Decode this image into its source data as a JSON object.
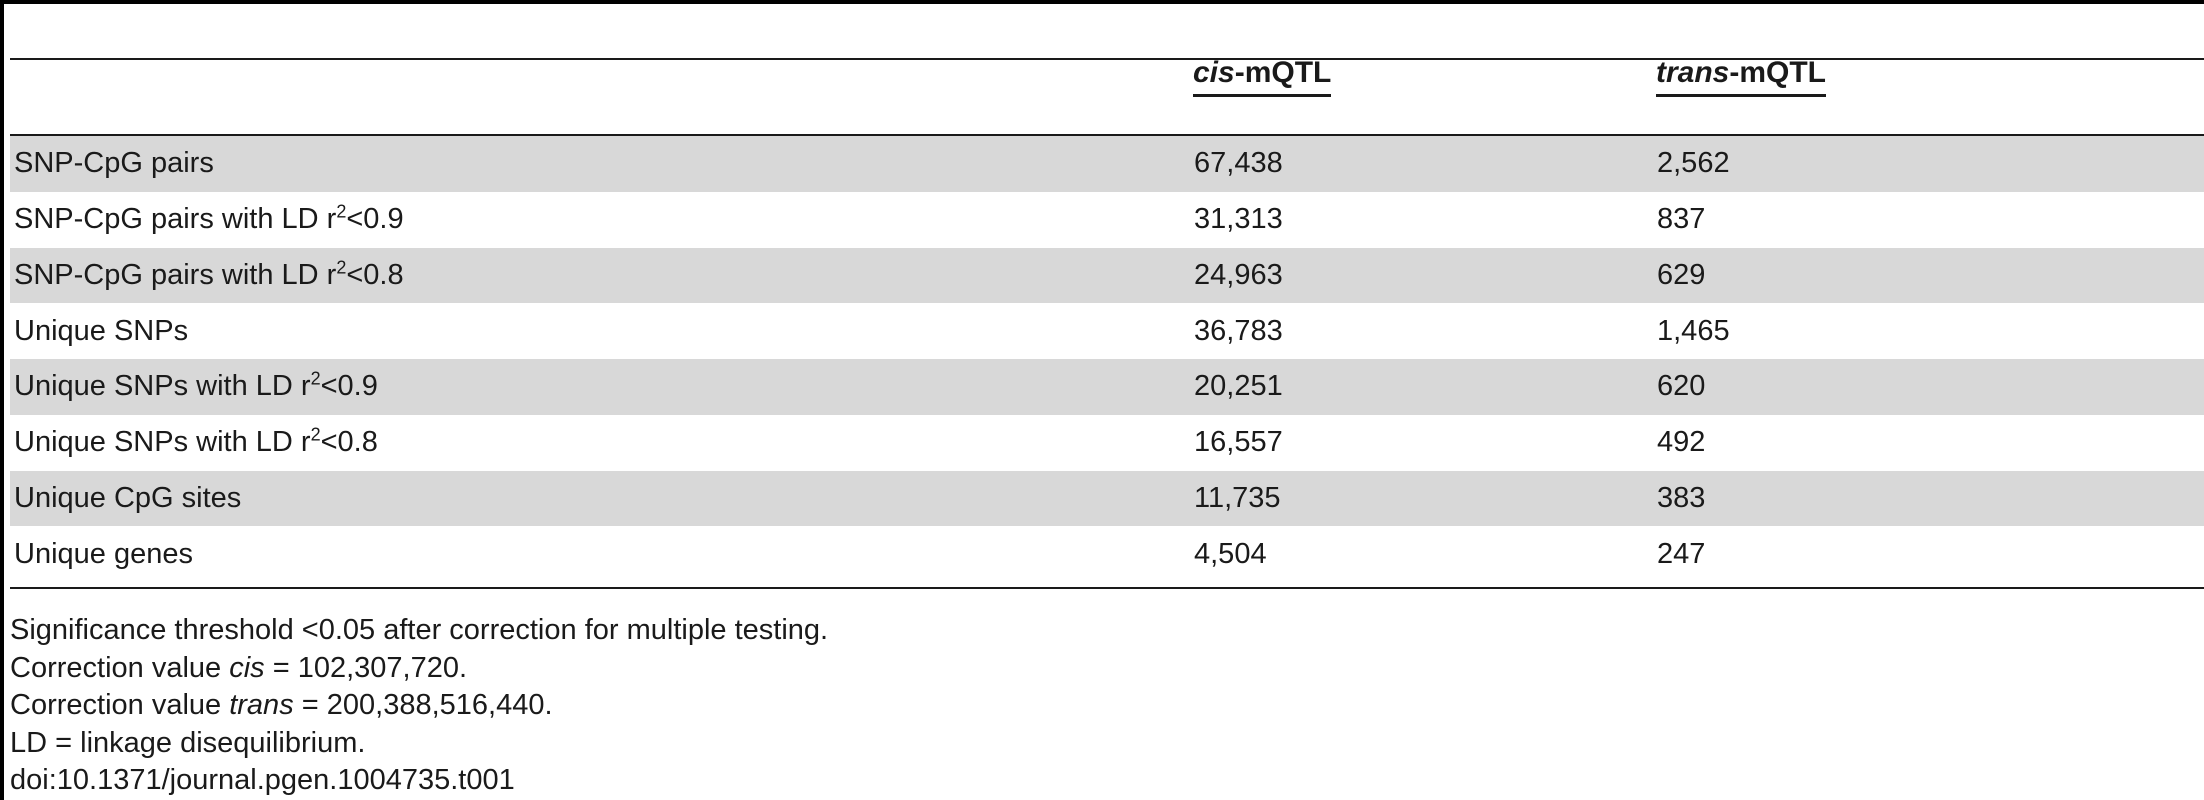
{
  "table": {
    "headers": {
      "col1": "",
      "col2": {
        "italic": "cis",
        "rest": "-mQTL"
      },
      "col3": {
        "italic": "trans",
        "rest": "-mQTL"
      }
    },
    "rows": [
      {
        "label": "SNP-CpG pairs",
        "sup": "",
        "suffix": "",
        "cis": "67,438",
        "trans": "2,562"
      },
      {
        "label": "SNP-CpG pairs with LD r",
        "sup": "2",
        "suffix": "<0.9",
        "cis": "31,313",
        "trans": "837"
      },
      {
        "label": "SNP-CpG pairs with LD r",
        "sup": "2",
        "suffix": "<0.8",
        "cis": "24,963",
        "trans": "629"
      },
      {
        "label": "Unique SNPs",
        "sup": "",
        "suffix": "",
        "cis": "36,783",
        "trans": "1,465"
      },
      {
        "label": "Unique SNPs with LD r",
        "sup": "2",
        "suffix": "<0.9",
        "cis": "20,251",
        "trans": "620"
      },
      {
        "label": "Unique SNPs with LD r",
        "sup": "2",
        "suffix": "<0.8",
        "cis": "16,557",
        "trans": "492"
      },
      {
        "label": "Unique CpG sites",
        "sup": "",
        "suffix": "",
        "cis": "11,735",
        "trans": "383"
      },
      {
        "label": "Unique genes",
        "sup": "",
        "suffix": "",
        "cis": "4,504",
        "trans": "247"
      }
    ]
  },
  "notes": {
    "significance": "Significance threshold <0.05 after correction for multiple testing.",
    "cis_prefix": "Correction value ",
    "cis_italic": "cis",
    "cis_value": " = 102,307,720.",
    "trans_prefix": "Correction value ",
    "trans_italic": "trans",
    "trans_value": " = 200,388,516,440.",
    "ld": "LD = linkage disequilibrium.",
    "doi": "doi:10.1371/journal.pgen.1004735.t001"
  },
  "colors": {
    "row_shade": "#d8d8d8",
    "rule": "#1a1a1a"
  }
}
